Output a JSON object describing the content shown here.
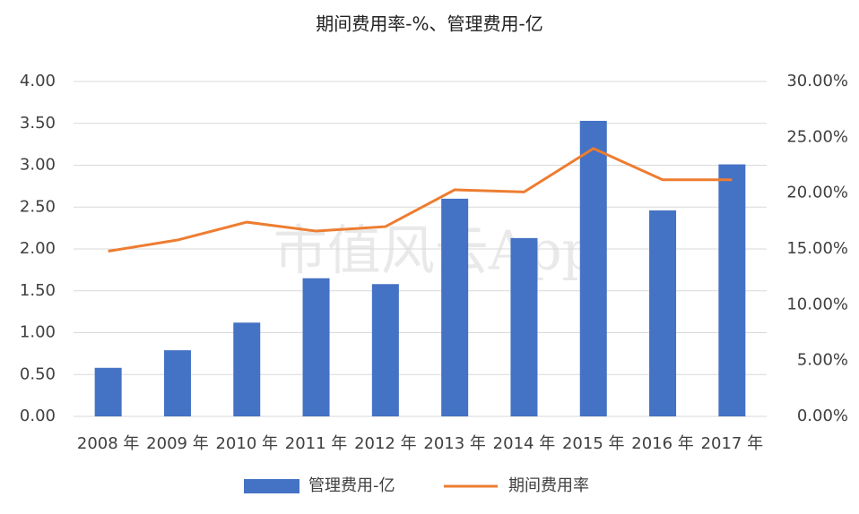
{
  "chart_data": {
    "type": "bar",
    "title": "期间费用率-%、管理费用-亿",
    "watermark": "市值风云App",
    "categories": [
      "2008 年",
      "2009 年",
      "2010 年",
      "2011 年",
      "2012 年",
      "2013 年",
      "2014 年",
      "2015 年",
      "2016 年",
      "2017 年"
    ],
    "series": [
      {
        "name": "管理费用-亿",
        "type": "bar",
        "color": "#4472c4",
        "values": [
          0.58,
          0.79,
          1.12,
          1.65,
          1.58,
          2.6,
          2.13,
          3.53,
          2.46,
          3.01
        ]
      },
      {
        "name": "期间费用率",
        "type": "line",
        "axis": "y2",
        "color": "#ed7d31",
        "values": [
          14.8,
          15.8,
          17.4,
          16.6,
          17.0,
          20.3,
          20.1,
          24.0,
          21.2,
          21.2
        ]
      }
    ],
    "ylim": [
      0,
      4
    ],
    "yticks": [
      {
        "value": 0,
        "label": "0.00"
      },
      {
        "value": 0.5,
        "label": "0.50"
      },
      {
        "value": 1,
        "label": "1.00"
      },
      {
        "value": 1.5,
        "label": "1.50"
      },
      {
        "value": 2,
        "label": "2.00"
      },
      {
        "value": 2.5,
        "label": "2.50"
      },
      {
        "value": 3,
        "label": "3.00"
      },
      {
        "value": 3.5,
        "label": "3.50"
      },
      {
        "value": 4,
        "label": "4.00"
      }
    ],
    "y2lim": [
      0,
      30
    ],
    "y2ticks": [
      {
        "value": 0,
        "label": "0.00%"
      },
      {
        "value": 5,
        "label": "5.00%"
      },
      {
        "value": 10,
        "label": "10.00%"
      },
      {
        "value": 15,
        "label": "15.00%"
      },
      {
        "value": 20,
        "label": "20.00%"
      },
      {
        "value": 25,
        "label": "25.00%"
      },
      {
        "value": 30,
        "label": "30.00%"
      }
    ],
    "grid": true,
    "legend": "bottom"
  }
}
